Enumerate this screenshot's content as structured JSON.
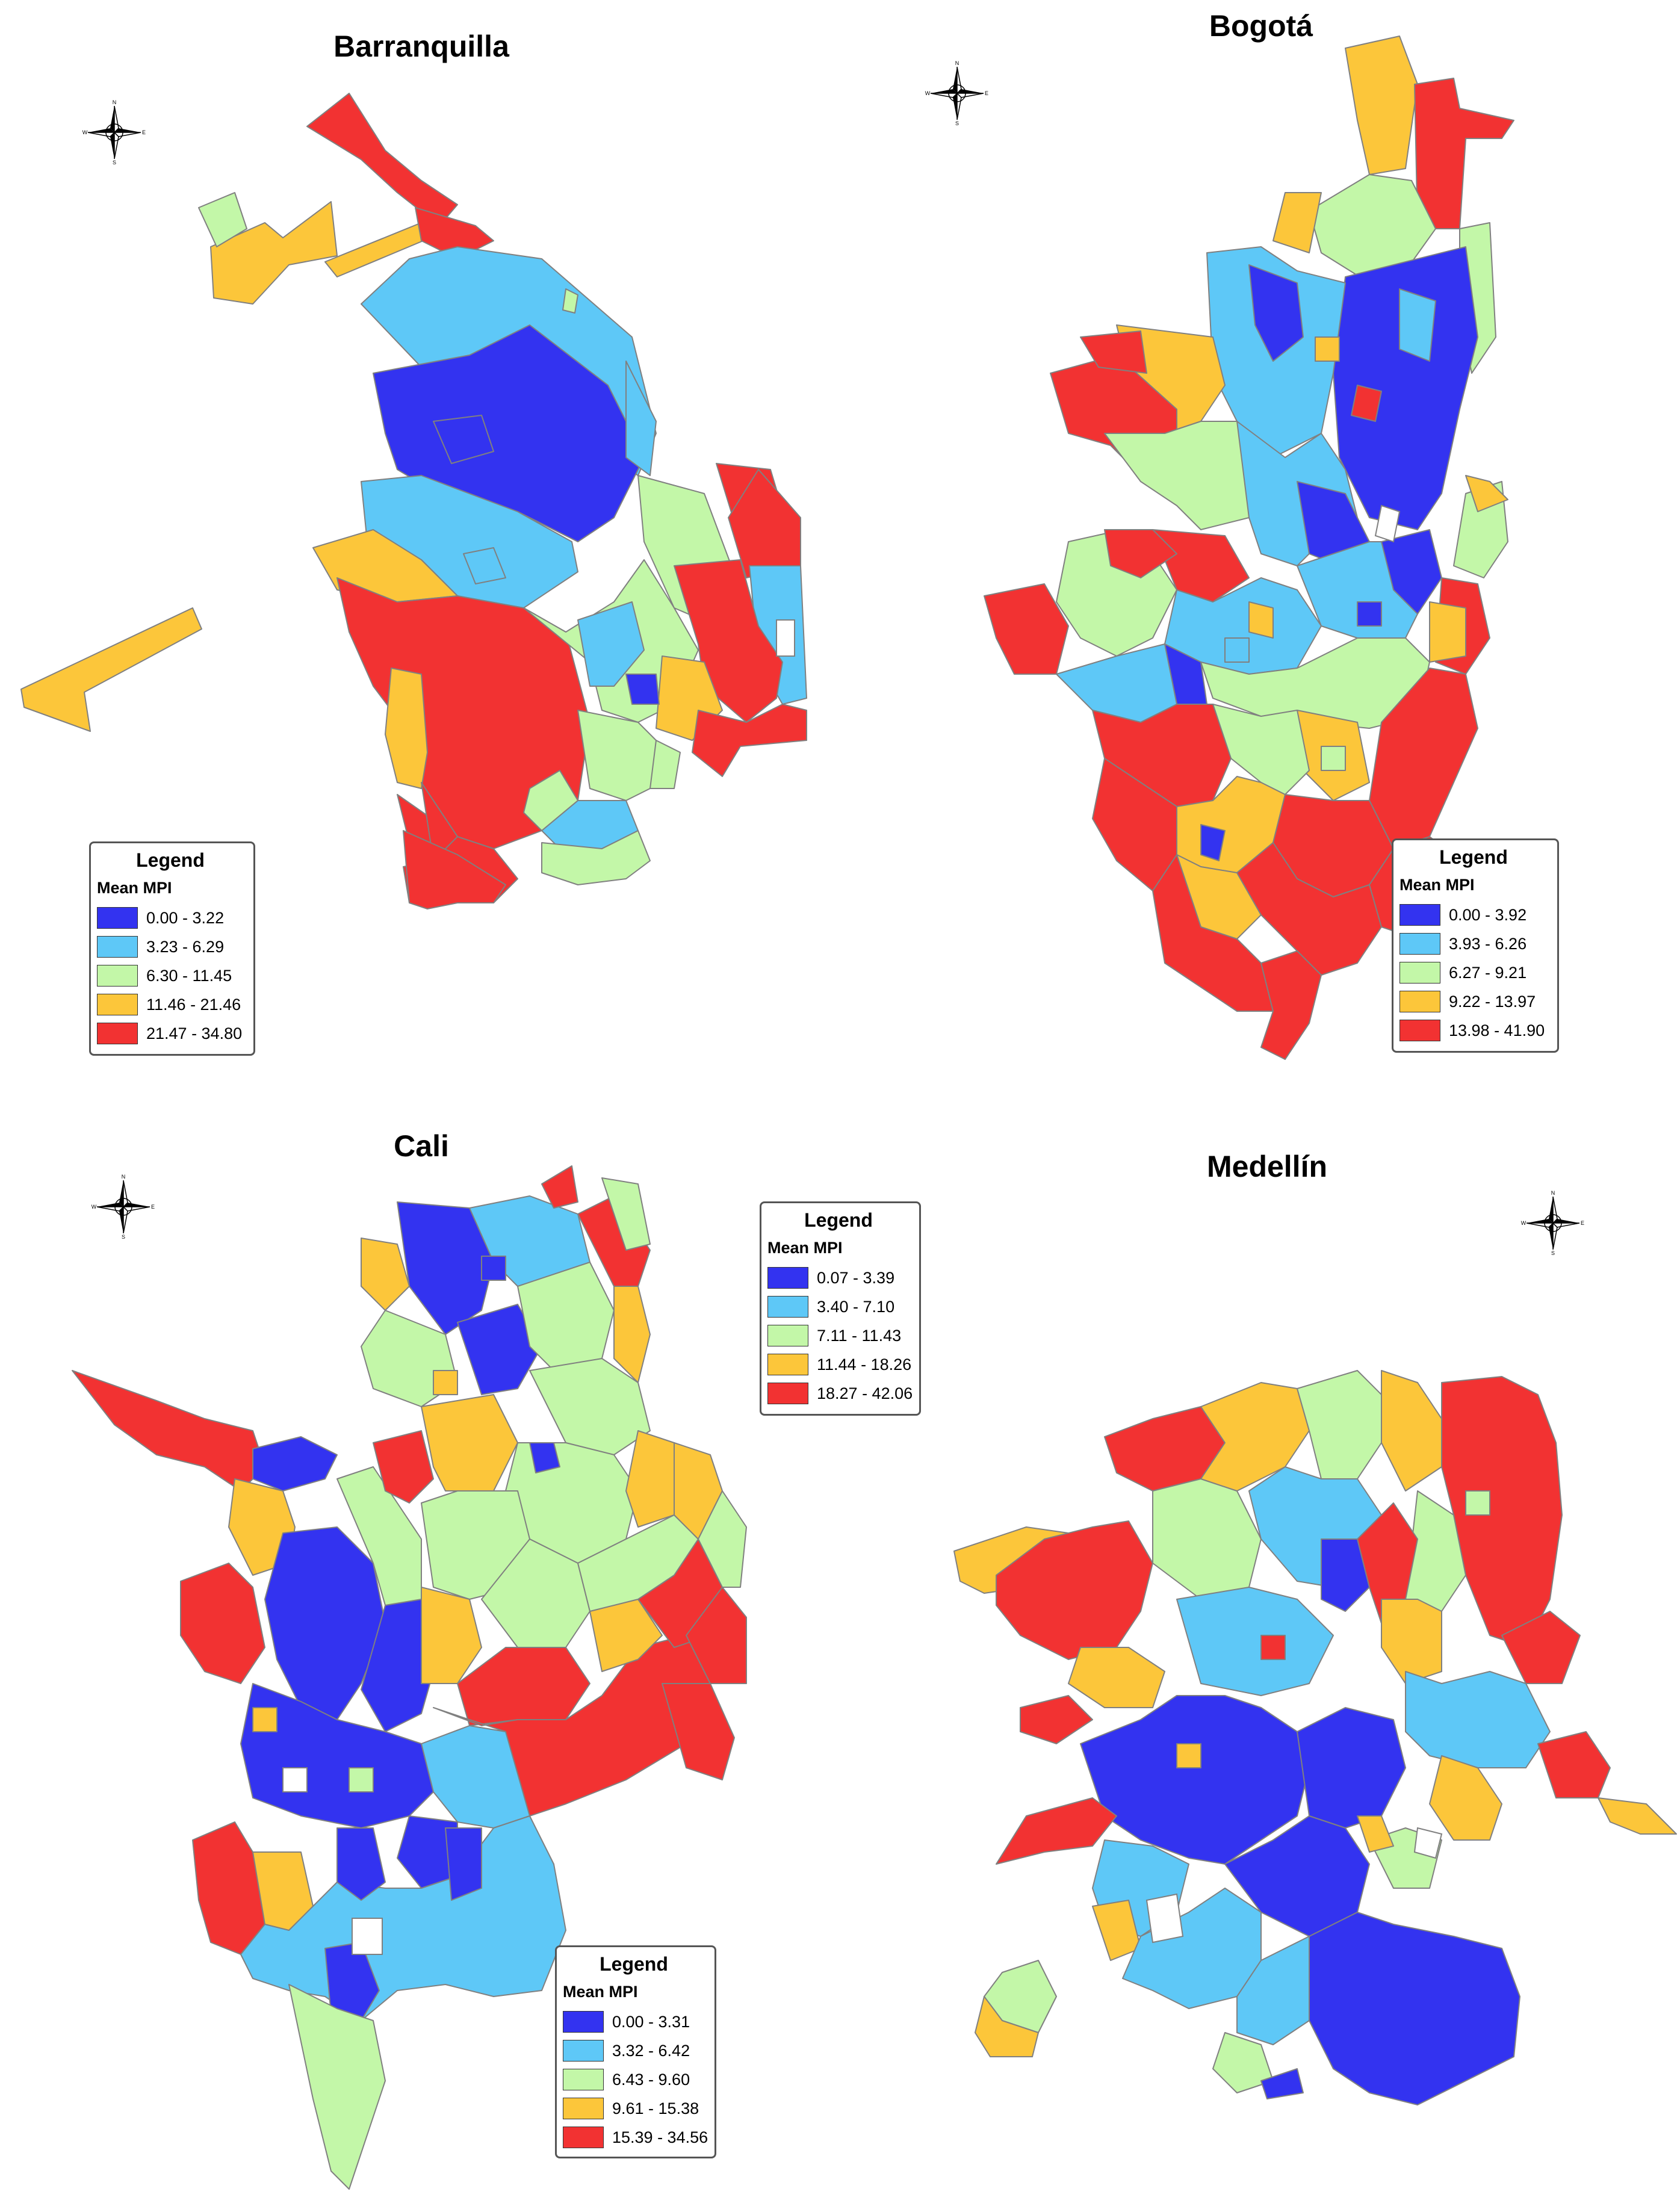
{
  "colors": {
    "class1": "#3333f0",
    "class2": "#5ec8f7",
    "class3": "#c3f7a8",
    "class4": "#fcc63a",
    "class5": "#f23232",
    "boundary": "#808080"
  },
  "icons": {
    "compass": "north-arrow-compass-icon"
  },
  "compass_letters": {
    "n": "N",
    "s": "S",
    "e": "E",
    "w": "W"
  },
  "panels": [
    {
      "title": "Barranquilla",
      "legend": {
        "title": "Legend",
        "subtitle": "Mean MPI",
        "classes": [
          "0.00 - 3.22",
          "3.23 - 6.29",
          "6.30 - 11.45",
          "11.46 - 21.46",
          "21.47 - 34.80"
        ]
      }
    },
    {
      "title": "Bogotá",
      "legend": {
        "title": "Legend",
        "subtitle": "Mean MPI",
        "classes": [
          "0.00 - 3.92",
          "3.93 - 6.26",
          "6.27 - 9.21",
          "9.22 - 13.97",
          "13.98 - 41.90"
        ]
      }
    },
    {
      "title": "Cali",
      "legend": {
        "title": "Legend",
        "subtitle": "Mean MPI",
        "classes": [
          "0.00 - 3.31",
          "3.32 - 6.42",
          "6.43 - 9.60",
          "9.61 - 15.38",
          "15.39 - 34.56"
        ]
      }
    },
    {
      "title": "Medellín",
      "legend": {
        "title": "Legend",
        "subtitle": "Mean MPI",
        "classes": [
          "0.07 - 3.39",
          "3.40 - 7.10",
          "7.11 - 11.43",
          "11.44 - 18.26",
          "18.27 - 42.06"
        ]
      }
    }
  ]
}
